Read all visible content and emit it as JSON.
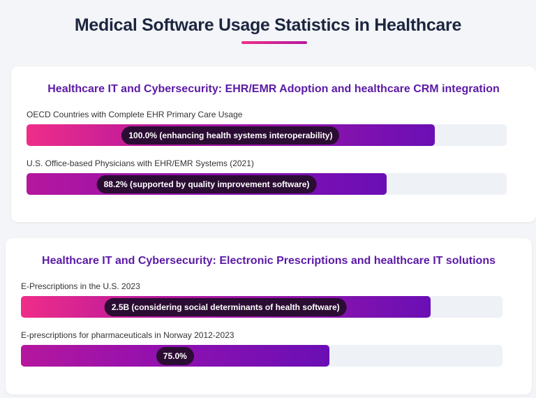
{
  "title": "Medical Software Usage Statistics in Healthcare",
  "sections": [
    {
      "title": "Healthcare IT and Cybersecurity: EHR/EMR Adoption and healthcare CRM integration",
      "items": [
        {
          "label": "OECD Countries with Complete EHR Primary Care Usage",
          "value_label": "100.0% (enhancing health systems interoperability)",
          "fill": 85
        },
        {
          "label": "U.S. Office-based Physicians with EHR/EMR Systems (2021)",
          "value_label": "88.2% (supported by quality improvement software)",
          "fill": 75
        }
      ]
    },
    {
      "title": "Healthcare IT and Cybersecurity: Electronic Prescriptions and healthcare IT solutions",
      "items": [
        {
          "label": "E-Prescriptions in the U.S. 2023",
          "value_label": "2.5B (considering social determinants of health software)",
          "fill": 85
        },
        {
          "label": "E-prescriptions for pharmaceuticals in Norway 2012-2023",
          "value_label": "75.0%",
          "fill": 64
        }
      ]
    }
  ]
}
